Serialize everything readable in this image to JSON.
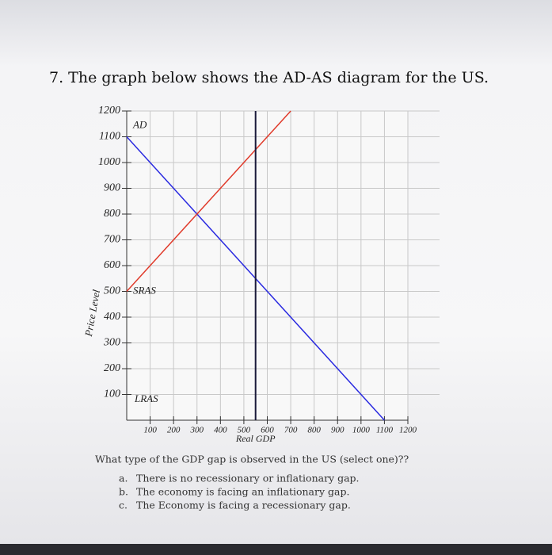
{
  "title": "7. The graph below shows the AD-AS diagram for the US.",
  "chart_data": {
    "type": "line",
    "ylabel": "Price Level",
    "xlabel": "Real GDP",
    "xlim": [
      0,
      1200
    ],
    "ylim": [
      0,
      1200
    ],
    "xticks": [
      100,
      200,
      300,
      400,
      500,
      600,
      700,
      800,
      900,
      1000,
      1100,
      1200
    ],
    "yticks": [
      100,
      200,
      300,
      400,
      500,
      600,
      700,
      800,
      900,
      1000,
      1100,
      1200
    ],
    "grid": true,
    "series": [
      {
        "name": "AD",
        "color": "#2a2ae0",
        "x": [
          0,
          1100
        ],
        "values": [
          1100,
          0
        ]
      },
      {
        "name": "SRAS",
        "color": "#e03a2a",
        "x": [
          0,
          700
        ],
        "values": [
          500,
          1200
        ]
      },
      {
        "name": "LRAS",
        "color": "#1a1a3a",
        "x": [
          550,
          550
        ],
        "values": [
          0,
          1200
        ]
      }
    ]
  },
  "question": {
    "text": "What type of the GDP gap is observed in the US (select one)??",
    "options": [
      {
        "letter": "a.",
        "text": "There is no recessionary or inflationary gap."
      },
      {
        "letter": "b.",
        "text": "The economy is facing an inflationary gap."
      },
      {
        "letter": "c.",
        "text": "The Economy is facing a recessionary gap."
      }
    ]
  }
}
